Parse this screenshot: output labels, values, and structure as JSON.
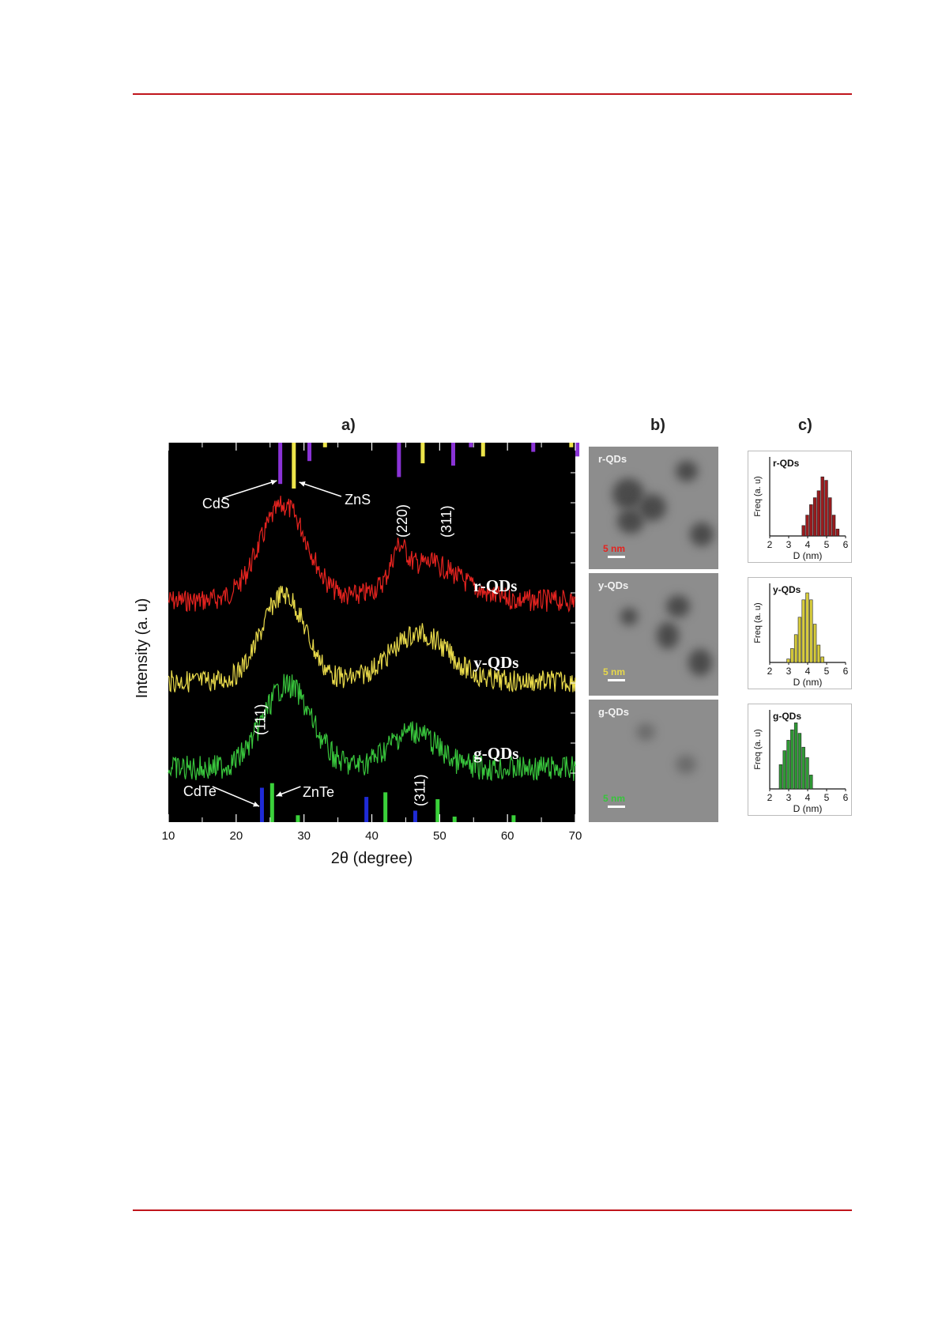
{
  "figure": {
    "panel_labels": [
      "a)",
      "b)",
      "c)"
    ]
  },
  "chart_data": [
    {
      "type": "line",
      "panel": "a)",
      "xlabel": "2θ (degree)",
      "ylabel": "Intensity (a. u)",
      "xlim": [
        10,
        70
      ],
      "xticks": [
        10,
        20,
        30,
        40,
        50,
        60,
        70
      ],
      "grid": false,
      "background": "#000000",
      "series": [
        {
          "name": "r-QDs",
          "color": "#e5231f",
          "peaks": [
            {
              "x": 27.0,
              "y": 1.0,
              "w": 5
            },
            {
              "x": 44.0,
              "y": 0.3,
              "w": 1.5
            },
            {
              "x": 48.0,
              "y": 0.4,
              "w": 7
            }
          ],
          "baseline": 0.0
        },
        {
          "name": "y-QDs",
          "color": "#e8d94a",
          "peaks": [
            {
              "x": 27.0,
              "y": 1.0,
              "w": 4.5
            },
            {
              "x": 47.0,
              "y": 0.55,
              "w": 6
            }
          ],
          "baseline": 0.0
        },
        {
          "name": "g-QDs",
          "color": "#38c43c",
          "peaks": [
            {
              "x": 27.5,
              "y": 1.0,
              "w": 5
            },
            {
              "x": 46.0,
              "y": 0.45,
              "w": 5
            }
          ],
          "baseline": 0.0
        }
      ],
      "reference_lines_top": [
        {
          "x": 26.5,
          "h": 0.9,
          "color": "#8a33d6"
        },
        {
          "x": 28.5,
          "h": 1.0,
          "color": "#ece44a"
        },
        {
          "x": 30.8,
          "h": 0.4,
          "color": "#8a33d6"
        },
        {
          "x": 33.1,
          "h": 0.1,
          "color": "#ece44a"
        },
        {
          "x": 44.0,
          "h": 0.75,
          "color": "#8a33d6"
        },
        {
          "x": 47.5,
          "h": 0.45,
          "color": "#ece44a"
        },
        {
          "x": 52.0,
          "h": 0.5,
          "color": "#8a33d6"
        },
        {
          "x": 54.6,
          "h": 0.1,
          "color": "#8a33d6"
        },
        {
          "x": 56.4,
          "h": 0.3,
          "color": "#ece44a"
        },
        {
          "x": 63.8,
          "h": 0.2,
          "color": "#8a33d6"
        },
        {
          "x": 69.4,
          "h": 0.1,
          "color": "#ece44a"
        },
        {
          "x": 70.3,
          "h": 0.3,
          "color": "#8a33d6"
        }
      ],
      "reference_lines_bottom": [
        {
          "x": 23.8,
          "h": 0.75,
          "color": "#1f2bd6"
        },
        {
          "x": 25.3,
          "h": 0.85,
          "color": "#3ad13a"
        },
        {
          "x": 29.1,
          "h": 0.15,
          "color": "#3ad13a"
        },
        {
          "x": 39.2,
          "h": 0.55,
          "color": "#1f2bd6"
        },
        {
          "x": 42.0,
          "h": 0.65,
          "color": "#3ad13a"
        },
        {
          "x": 46.4,
          "h": 0.25,
          "color": "#1f2bd6"
        },
        {
          "x": 49.7,
          "h": 0.5,
          "color": "#3ad13a"
        },
        {
          "x": 52.2,
          "h": 0.12,
          "color": "#3ad13a"
        },
        {
          "x": 60.9,
          "h": 0.15,
          "color": "#3ad13a"
        }
      ],
      "annotations": [
        {
          "text": "CdS"
        },
        {
          "text": "ZnS"
        },
        {
          "text": "(220)"
        },
        {
          "text": "(311)"
        },
        {
          "text": "(111)"
        },
        {
          "text": "(311)"
        },
        {
          "text": "CdTe"
        },
        {
          "text": "ZnTe"
        }
      ]
    },
    {
      "type": "bar",
      "panel": "c)",
      "title": "r-QDs",
      "xlabel": "D (nm)",
      "ylabel": "Freq (a. u)",
      "xlim": [
        2,
        6
      ],
      "xticks": [
        2,
        3,
        4,
        5,
        6
      ],
      "color": "#9b1b1e",
      "x": [
        3.8,
        4.0,
        4.2,
        4.4,
        4.6,
        4.8,
        5.0,
        5.2,
        5.4,
        5.6
      ],
      "values": [
        0.15,
        0.3,
        0.45,
        0.55,
        0.65,
        0.85,
        0.8,
        0.55,
        0.3,
        0.1
      ]
    },
    {
      "type": "bar",
      "panel": "c)",
      "title": "y-QDs",
      "xlabel": "D (nm)",
      "ylabel": "Freq (a. u)",
      "xlim": [
        2,
        6
      ],
      "xticks": [
        2,
        3,
        4,
        5,
        6
      ],
      "color": "#d7cc3c",
      "x": [
        3.0,
        3.2,
        3.4,
        3.6,
        3.8,
        4.0,
        4.2,
        4.4,
        4.6,
        4.8
      ],
      "values": [
        0.05,
        0.2,
        0.4,
        0.65,
        0.9,
        1.0,
        0.9,
        0.55,
        0.25,
        0.08
      ]
    },
    {
      "type": "bar",
      "panel": "c)",
      "title": "g-QDs",
      "xlabel": "D (nm)",
      "ylabel": "Freq (a. u)",
      "xlim": [
        2,
        6
      ],
      "xticks": [
        2,
        3,
        4,
        5,
        6
      ],
      "color": "#2f9a35",
      "x": [
        2.6,
        2.8,
        3.0,
        3.2,
        3.4,
        3.6,
        3.8,
        4.0,
        4.2
      ],
      "values": [
        0.35,
        0.55,
        0.7,
        0.85,
        0.95,
        0.8,
        0.6,
        0.45,
        0.2
      ]
    }
  ],
  "tem_images": [
    {
      "label": "r-QDs",
      "scale": "5 nm",
      "scale_color": "#e5231f"
    },
    {
      "label": "y-QDs",
      "scale": "5 nm",
      "scale_color": "#e8d94a"
    },
    {
      "label": "g-QDs",
      "scale": "5 nm",
      "scale_color": "#38c43c"
    }
  ]
}
